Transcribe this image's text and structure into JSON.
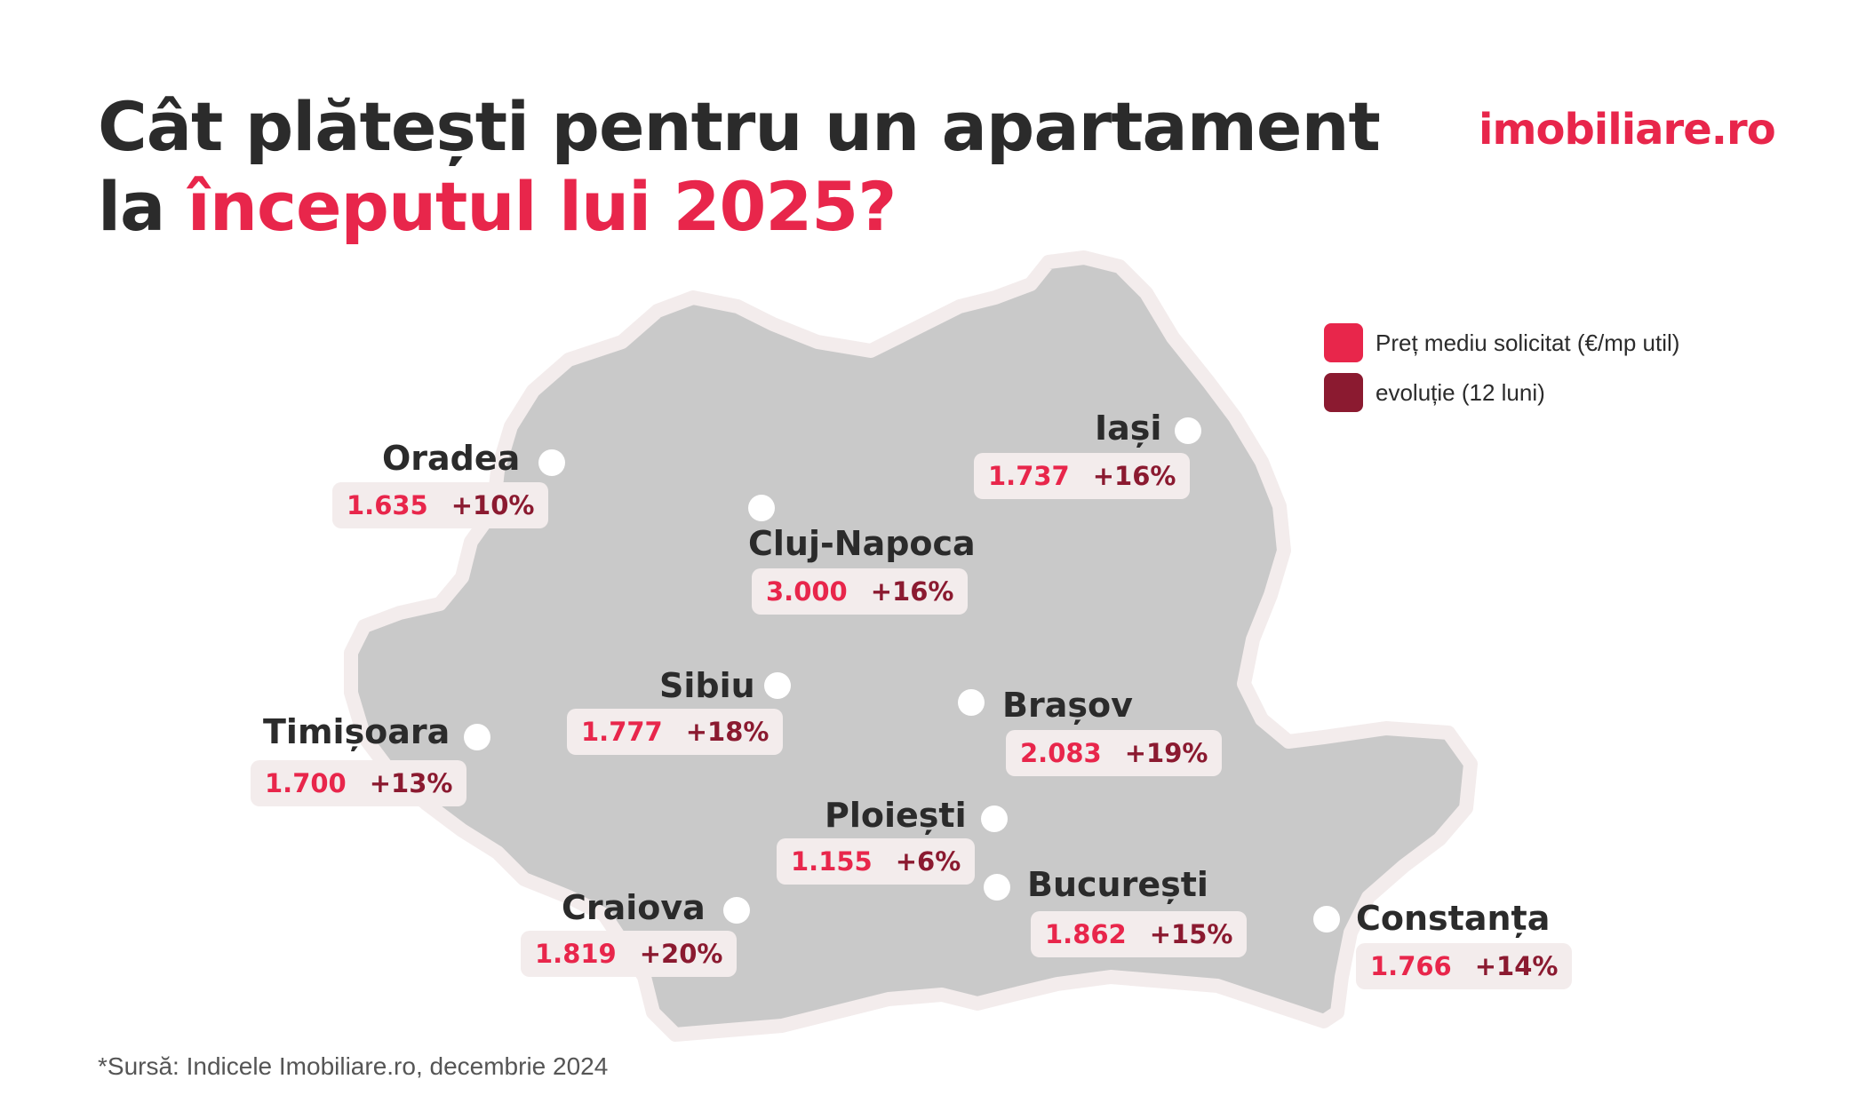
{
  "header": {
    "title_line1": "Cât plătești pentru un apartament",
    "title_line2_prefix": "la ",
    "title_line2_accent": "începutul lui 2025?",
    "logo": "imobiliare.ro"
  },
  "legend": [
    {
      "label": "Preț mediu solicitat (€/mp util)",
      "color": "#e8264b"
    },
    {
      "label": "evoluție (12 luni)",
      "color": "#8b1a30"
    }
  ],
  "colors": {
    "accent": "#e8264b",
    "evolution": "#8b1a30",
    "map_fill": "#c9c9c9",
    "map_border": "#f3ecec",
    "label_bg": "#f3ecec"
  },
  "cities": {
    "oradea": {
      "name": "Oradea",
      "price": "1.635",
      "evolution": "+10%"
    },
    "cluj": {
      "name": "Cluj-Napoca",
      "price": "3.000",
      "evolution": "+16%"
    },
    "iasi": {
      "name": "Iași",
      "price": "1.737",
      "evolution": "+16%"
    },
    "timisoara": {
      "name": "Timișoara",
      "price": "1.700",
      "evolution": "+13%"
    },
    "sibiu": {
      "name": "Sibiu",
      "price": "1.777",
      "evolution": "+18%"
    },
    "brasov": {
      "name": "Brașov",
      "price": "2.083",
      "evolution": "+19%"
    },
    "ploiesti": {
      "name": "Ploiești",
      "price": "1.155",
      "evolution": "+6%"
    },
    "bucuresti": {
      "name": "București",
      "price": "1.862",
      "evolution": "+15%"
    },
    "craiova": {
      "name": "Craiova",
      "price": "1.819",
      "evolution": "+20%"
    },
    "constanta": {
      "name": "Constanța",
      "price": "1.766",
      "evolution": "+14%"
    }
  },
  "footer": {
    "source": "*Sursă: Indicele Imobiliare.ro, decembrie 2024"
  }
}
